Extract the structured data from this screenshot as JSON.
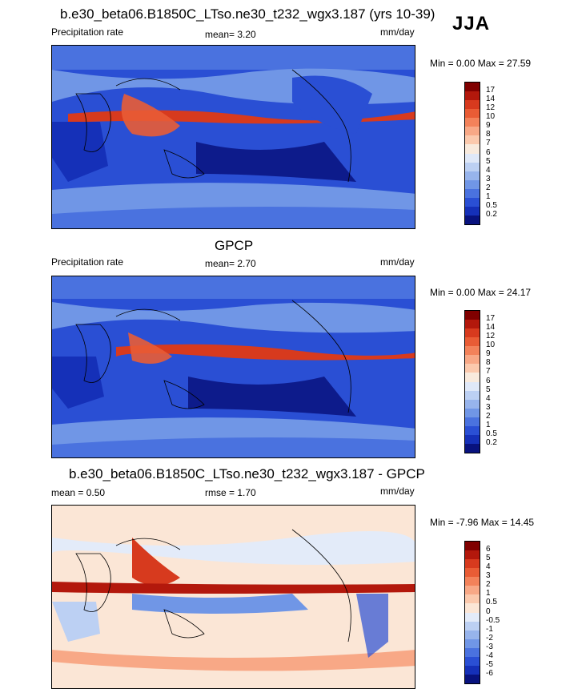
{
  "header": {
    "season": "JJA"
  },
  "panels": [
    {
      "title": "b.e30_beta06.B1850C_LTso.ne30_t232_wgx3.187 (yrs 10-39)",
      "left_label": "Precipitation rate",
      "stat_text": "mean=   3.20",
      "units": "mm/day",
      "minmax": "Min =   0.00 Max =  27.59"
    },
    {
      "title": "GPCP",
      "left_label": "Precipitation rate",
      "stat_text": "mean=   2.70",
      "units": "mm/day",
      "minmax": "Min =   0.00 Max =  24.17"
    },
    {
      "title": "b.e30_beta06.B1850C_LTso.ne30_t232_wgx3.187 - GPCP",
      "left_label": "mean =   0.50",
      "stat_text": "rmse =   1.70",
      "units": "mm/day",
      "minmax": "Min =  -7.96 Max =  14.45"
    }
  ],
  "colorbars": {
    "precip": {
      "labels": [
        "17",
        "14",
        "12",
        "10",
        "9",
        "8",
        "7",
        "6",
        "5",
        "4",
        "3",
        "2",
        "1",
        "0.5",
        "0.2"
      ],
      "colors": [
        "#800000",
        "#b3180c",
        "#d73a1e",
        "#e95c35",
        "#f3825a",
        "#f8a886",
        "#fbc9ad",
        "#f8eadd",
        "#dfe8f8",
        "#bcd0f3",
        "#97b4ec",
        "#7096e6",
        "#4a72df",
        "#2a4fd4",
        "#1530b8",
        "#08127e"
      ]
    },
    "diff": {
      "labels": [
        "6",
        "5",
        "4",
        "3",
        "2",
        "1",
        "0.5",
        "0",
        "-0.5",
        "-1",
        "-2",
        "-3",
        "-4",
        "-5",
        "-6"
      ],
      "colors": [
        "#800000",
        "#b3180c",
        "#d73a1e",
        "#e95c35",
        "#f3825a",
        "#f8a886",
        "#fbc9ad",
        "#fbe6d6",
        "#e3ebf9",
        "#bcd0f3",
        "#97b4ec",
        "#7096e6",
        "#4a72df",
        "#2a4fd4",
        "#1530b8",
        "#08127e"
      ]
    }
  },
  "chart_data": [
    {
      "type": "heatmap",
      "title": "b.e30_beta06.B1850C_LTso.ne30_t232_wgx3.187 (yrs 10-39)",
      "variable": "Precipitation rate",
      "units": "mm/day",
      "mean": 3.2,
      "min": 0.0,
      "max": 27.59,
      "contour_levels": [
        0.2,
        0.5,
        1,
        2,
        3,
        4,
        5,
        6,
        7,
        8,
        9,
        10,
        12,
        14,
        17
      ]
    },
    {
      "type": "heatmap",
      "title": "GPCP",
      "variable": "Precipitation rate",
      "units": "mm/day",
      "mean": 2.7,
      "min": 0.0,
      "max": 24.17,
      "contour_levels": [
        0.2,
        0.5,
        1,
        2,
        3,
        4,
        5,
        6,
        7,
        8,
        9,
        10,
        12,
        14,
        17
      ]
    },
    {
      "type": "heatmap",
      "title": "b.e30_beta06.B1850C_LTso.ne30_t232_wgx3.187 - GPCP",
      "units": "mm/day",
      "mean": 0.5,
      "rmse": 1.7,
      "min": -7.96,
      "max": 14.45,
      "contour_levels": [
        -6,
        -5,
        -4,
        -3,
        -2,
        -1,
        -0.5,
        0,
        0.5,
        1,
        2,
        3,
        4,
        5,
        6
      ]
    }
  ]
}
